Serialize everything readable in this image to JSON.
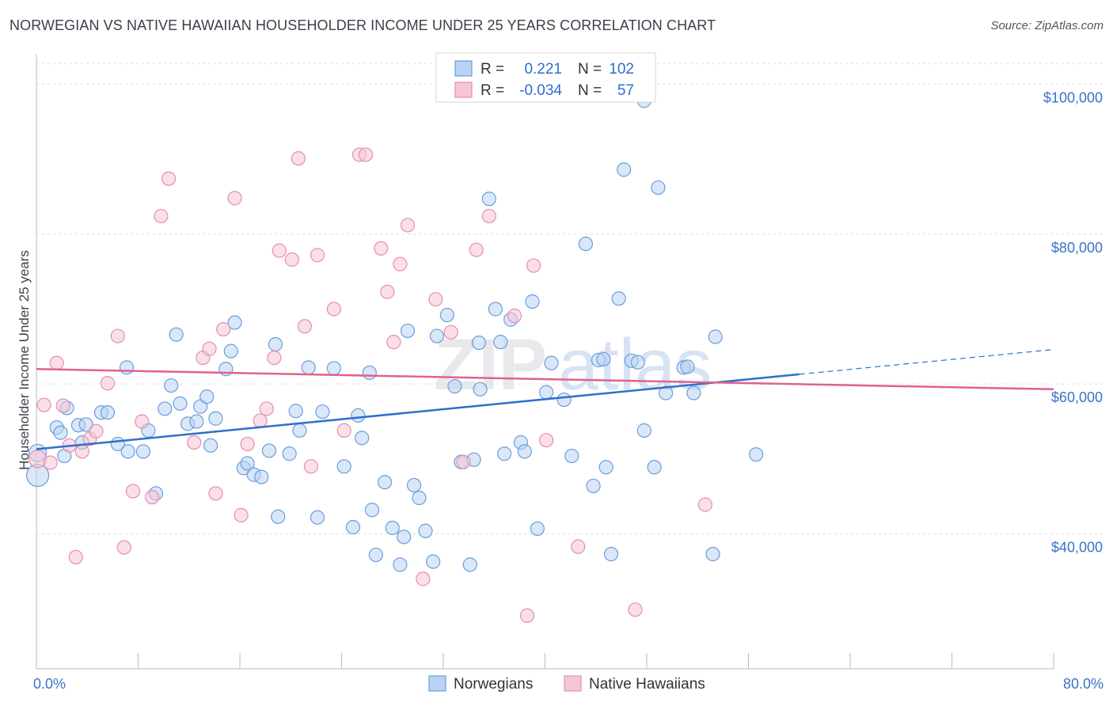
{
  "title": "NORWEGIAN VS NATIVE HAWAIIAN HOUSEHOLDER INCOME UNDER 25 YEARS CORRELATION CHART",
  "source": "Source: ZipAtlas.com",
  "watermark": {
    "part1": "ZIP",
    "part2": "atlas"
  },
  "colors": {
    "norwegians_fill": "#b9d4f3",
    "norwegians_stroke": "#6a9edc",
    "norwegians_line": "#2f6fcc",
    "hawaiians_fill": "#f6c5d5",
    "hawaiians_stroke": "#e58fab",
    "hawaiians_line": "#e0628c",
    "axis_text": "#3a73c8"
  },
  "legend": {
    "r_label": "R =",
    "n_label": "N =",
    "rows": [
      {
        "r": "0.221",
        "n": "102"
      },
      {
        "r": "-0.034",
        "n": "57"
      }
    ]
  },
  "chart_data": {
    "type": "scatter",
    "xlabel": "",
    "ylabel": "Householder Income Under 25 years",
    "x_tick_labels": [
      "0.0%",
      "80.0%"
    ],
    "y_tick_labels": [
      "$40,000",
      "$60,000",
      "$80,000",
      "$100,000"
    ],
    "y_ticks": [
      40000,
      60000,
      80000,
      100000
    ],
    "xlim": [
      0,
      80
    ],
    "ylim": [
      22000,
      103000
    ],
    "legend_position": "bottom",
    "series": [
      {
        "name": "Norwegians",
        "r": 0.221,
        "n": 102,
        "trend": {
          "x0": 0,
          "y0": 51300,
          "x1": 60,
          "y1": 61300,
          "dash_to_x": 80,
          "dash_to_y": 64600
        },
        "points": [
          [
            0.1,
            50.8,
            2
          ],
          [
            0.1,
            47.8,
            3
          ],
          [
            1.6,
            54.2,
            1
          ],
          [
            1.9,
            53.5,
            1
          ],
          [
            2.2,
            50.4,
            1
          ],
          [
            2.4,
            56.8,
            1
          ],
          [
            3.3,
            54.5,
            1
          ],
          [
            3.6,
            52.2,
            1
          ],
          [
            3.9,
            54.6,
            1
          ],
          [
            5.1,
            56.2,
            1
          ],
          [
            5.6,
            56.2,
            1
          ],
          [
            6.4,
            52.0,
            1
          ],
          [
            7.1,
            62.2,
            1
          ],
          [
            7.2,
            51.0,
            1
          ],
          [
            8.4,
            51.0,
            1
          ],
          [
            8.8,
            53.8,
            1
          ],
          [
            9.4,
            45.4,
            1
          ],
          [
            10.1,
            56.7,
            1
          ],
          [
            10.6,
            59.8,
            1
          ],
          [
            11.0,
            66.6,
            1
          ],
          [
            11.3,
            57.4,
            1
          ],
          [
            11.9,
            54.7,
            1
          ],
          [
            12.6,
            55.0,
            1
          ],
          [
            12.9,
            57.0,
            1
          ],
          [
            13.4,
            58.3,
            1
          ],
          [
            13.7,
            51.8,
            1
          ],
          [
            14.1,
            55.4,
            1
          ],
          [
            14.9,
            62.0,
            1
          ],
          [
            15.3,
            64.4,
            1
          ],
          [
            15.6,
            68.2,
            1
          ],
          [
            16.3,
            48.8,
            1
          ],
          [
            16.6,
            49.4,
            1
          ],
          [
            17.1,
            47.9,
            1
          ],
          [
            17.7,
            47.6,
            1
          ],
          [
            18.3,
            51.1,
            1
          ],
          [
            18.8,
            65.3,
            1
          ],
          [
            19.0,
            42.3,
            1
          ],
          [
            19.9,
            50.7,
            1
          ],
          [
            20.4,
            56.4,
            1
          ],
          [
            20.7,
            53.8,
            1
          ],
          [
            21.4,
            62.2,
            1
          ],
          [
            22.1,
            42.2,
            1
          ],
          [
            22.5,
            56.3,
            1
          ],
          [
            23.4,
            62.1,
            1
          ],
          [
            24.2,
            49.0,
            1
          ],
          [
            24.9,
            40.9,
            1
          ],
          [
            25.3,
            55.8,
            1
          ],
          [
            25.6,
            52.8,
            1
          ],
          [
            26.4,
            43.2,
            1
          ],
          [
            26.7,
            37.2,
            1
          ],
          [
            27.4,
            46.9,
            1
          ],
          [
            28.0,
            40.8,
            1
          ],
          [
            28.6,
            35.9,
            1
          ],
          [
            28.9,
            39.6,
            1
          ],
          [
            29.2,
            67.1,
            1
          ],
          [
            29.7,
            46.5,
            1
          ],
          [
            30.1,
            44.8,
            1
          ],
          [
            30.6,
            40.4,
            1
          ],
          [
            31.2,
            36.3,
            1
          ],
          [
            31.5,
            66.4,
            1
          ],
          [
            32.3,
            69.2,
            1
          ],
          [
            32.9,
            59.7,
            1
          ],
          [
            33.4,
            49.6,
            1
          ],
          [
            34.1,
            35.9,
            1
          ],
          [
            34.4,
            49.9,
            1
          ],
          [
            34.8,
            65.5,
            1
          ],
          [
            34.9,
            59.3,
            1
          ],
          [
            35.6,
            84.7,
            1
          ],
          [
            36.1,
            70.0,
            1
          ],
          [
            36.5,
            65.6,
            1
          ],
          [
            36.8,
            50.7,
            1
          ],
          [
            37.3,
            68.6,
            1
          ],
          [
            38.1,
            52.2,
            1
          ],
          [
            38.4,
            51.0,
            1
          ],
          [
            39.0,
            71.0,
            1
          ],
          [
            39.4,
            40.7,
            1
          ],
          [
            40.1,
            58.9,
            1
          ],
          [
            40.5,
            62.8,
            1
          ],
          [
            41.5,
            57.9,
            1
          ],
          [
            42.1,
            50.4,
            1
          ],
          [
            43.2,
            78.7,
            1
          ],
          [
            43.8,
            46.4,
            1
          ],
          [
            44.2,
            63.2,
            1
          ],
          [
            44.6,
            63.3,
            1
          ],
          [
            44.8,
            48.9,
            1
          ],
          [
            45.2,
            37.3,
            1
          ],
          [
            45.8,
            71.4,
            1
          ],
          [
            46.2,
            88.6,
            1
          ],
          [
            46.8,
            63.1,
            1
          ],
          [
            47.3,
            62.9,
            1
          ],
          [
            47.8,
            53.8,
            1
          ],
          [
            48.6,
            48.9,
            1
          ],
          [
            48.9,
            86.2,
            1
          ],
          [
            49.5,
            58.8,
            1
          ],
          [
            50.9,
            62.2,
            1
          ],
          [
            51.2,
            62.3,
            1
          ],
          [
            51.7,
            58.8,
            1
          ],
          [
            53.2,
            37.3,
            1
          ],
          [
            53.4,
            66.3,
            1
          ],
          [
            56.6,
            50.6,
            1
          ],
          [
            47.8,
            97.8,
            1
          ],
          [
            26.2,
            61.5,
            1
          ]
        ]
      },
      {
        "name": "Native Hawaiians",
        "r": -0.034,
        "n": 57,
        "trend": {
          "x0": 0,
          "y0": 62000,
          "x1": 80,
          "y1": 59300
        },
        "points": [
          [
            0.1,
            50.0,
            2
          ],
          [
            0.6,
            57.2,
            1
          ],
          [
            1.1,
            49.5,
            1
          ],
          [
            1.6,
            62.8,
            1
          ],
          [
            2.1,
            57.1,
            1
          ],
          [
            2.6,
            51.8,
            1
          ],
          [
            3.1,
            36.9,
            1
          ],
          [
            3.6,
            51.0,
            1
          ],
          [
            4.2,
            52.7,
            1
          ],
          [
            4.7,
            53.7,
            1
          ],
          [
            5.6,
            60.1,
            1
          ],
          [
            6.4,
            66.4,
            1
          ],
          [
            6.9,
            38.2,
            1
          ],
          [
            7.6,
            45.7,
            1
          ],
          [
            8.3,
            55.0,
            1
          ],
          [
            9.1,
            44.9,
            1
          ],
          [
            9.8,
            82.4,
            1
          ],
          [
            10.4,
            87.4,
            1
          ],
          [
            12.4,
            52.2,
            1
          ],
          [
            13.1,
            63.5,
            1
          ],
          [
            13.6,
            64.7,
            1
          ],
          [
            14.1,
            45.4,
            1
          ],
          [
            14.7,
            67.3,
            1
          ],
          [
            15.6,
            84.8,
            1
          ],
          [
            16.1,
            42.5,
            1
          ],
          [
            16.6,
            52.0,
            1
          ],
          [
            17.6,
            55.1,
            1
          ],
          [
            18.1,
            56.7,
            1
          ],
          [
            18.7,
            63.5,
            1
          ],
          [
            19.1,
            77.8,
            1
          ],
          [
            20.1,
            76.6,
            1
          ],
          [
            20.6,
            90.1,
            1
          ],
          [
            21.1,
            67.7,
            1
          ],
          [
            21.6,
            49.0,
            1
          ],
          [
            22.1,
            77.2,
            1
          ],
          [
            23.4,
            70.0,
            1
          ],
          [
            24.2,
            53.8,
            1
          ],
          [
            25.4,
            90.6,
            1
          ],
          [
            25.9,
            90.6,
            1
          ],
          [
            27.1,
            78.1,
            1
          ],
          [
            27.6,
            72.3,
            1
          ],
          [
            28.1,
            65.6,
            1
          ],
          [
            28.6,
            76.0,
            1
          ],
          [
            29.2,
            81.2,
            1
          ],
          [
            30.4,
            34.0,
            1
          ],
          [
            31.4,
            71.3,
            1
          ],
          [
            32.6,
            66.9,
            1
          ],
          [
            33.6,
            49.6,
            1
          ],
          [
            34.6,
            77.9,
            1
          ],
          [
            35.6,
            82.4,
            1
          ],
          [
            37.6,
            69.1,
            1
          ],
          [
            38.6,
            29.1,
            1
          ],
          [
            39.1,
            75.8,
            1
          ],
          [
            40.1,
            52.5,
            1
          ],
          [
            42.6,
            38.3,
            1
          ],
          [
            47.1,
            29.9,
            1
          ],
          [
            52.6,
            43.9,
            1
          ]
        ]
      }
    ],
    "notes_units": "x in percent, y in thousands of dollars"
  },
  "bottom_legend": [
    "Norwegians",
    "Native Hawaiians"
  ]
}
